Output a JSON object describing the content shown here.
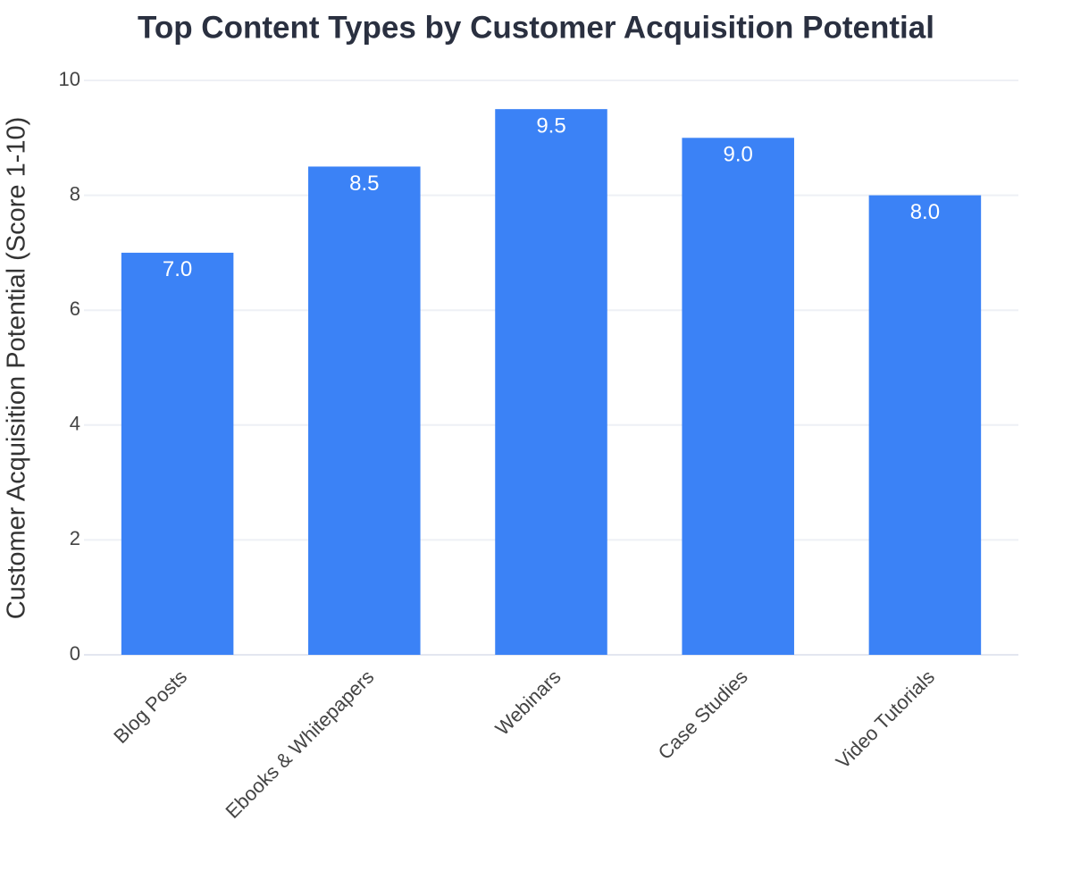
{
  "chart_data": {
    "type": "bar",
    "title": "Top Content Types by Customer Acquisition Potential",
    "y_label": "Customer Acquisition Potential (Score 1-10)",
    "categories": [
      "Blog Posts",
      "Ebooks & Whitepapers",
      "Webinars",
      "Case Studies",
      "Video Tutorials"
    ],
    "values": [
      7,
      8.5,
      9.5,
      9,
      8
    ],
    "value_labels": [
      "7.0",
      "8.5",
      "9.5",
      "9.0",
      "8.0"
    ],
    "color": "#3b82f6",
    "ylim": [
      0,
      10
    ],
    "yticks": [
      0,
      2,
      4,
      6,
      8,
      10
    ],
    "grid": true
  }
}
